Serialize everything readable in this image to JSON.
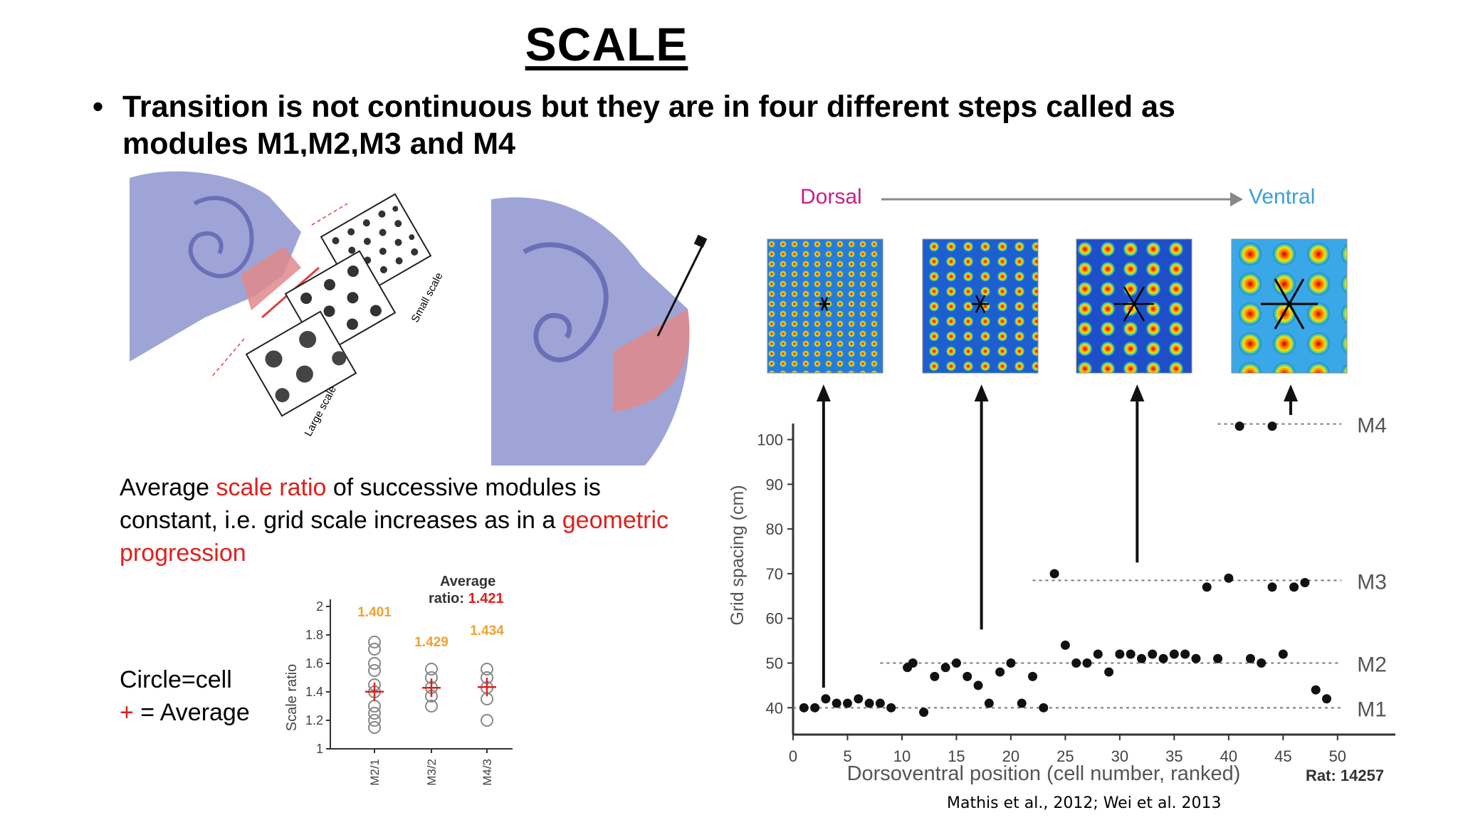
{
  "slide": {
    "title": "SCALE",
    "bullet_symbol": "•",
    "bullet": "Transition is not continuous but they are in four different steps called as modules M1,M2,M3 and M4",
    "avg_text": {
      "part1": "Average ",
      "highlight1": "scale ratio",
      "part2": " of successive modules is constant, i.e. grid scale increases as in a ",
      "highlight2": "geometric progression"
    },
    "legend": {
      "circle": "Circle=cell",
      "plus_symbol": "+",
      "plus_text": " = Average"
    },
    "citation": "Mathis et al., 2012; Wei et al. 2013"
  },
  "brain_left": {
    "small_scale": "Small scale",
    "large_scale": "Large scale"
  },
  "ratio_chart": {
    "ylabel": "Scale ratio",
    "yticks": [
      "2",
      "1.8",
      "1.6",
      "1.4",
      "1.2",
      "1"
    ],
    "categories": [
      "M2/1",
      "M3/2",
      "M4/3"
    ],
    "labels": [
      "1.401",
      "1.429",
      "1.434"
    ],
    "avg_label": "Average",
    "avg_ratio_prefix": "ratio: ",
    "avg_ratio_value": "1.421",
    "label_color": "#f0a030",
    "avg_color": "#e0201c"
  },
  "chart_data": {
    "type": "scatter",
    "xlabel": "Dorsoventral position (cell number, ranked)",
    "ylabel": "Grid spacing (cm)",
    "xticks": [
      "0",
      "5",
      "10",
      "15",
      "20",
      "25",
      "30",
      "35",
      "40",
      "45",
      "50"
    ],
    "yticks": [
      "40",
      "50",
      "60",
      "70",
      "80",
      "90",
      "100"
    ],
    "xlim": [
      0,
      54
    ],
    "ylim": [
      34,
      102
    ],
    "modules": [
      {
        "name": "M1",
        "level": 40
      },
      {
        "name": "M2",
        "level": 50
      },
      {
        "name": "M3",
        "level": 68.5
      },
      {
        "name": "M4",
        "level": 103.5
      }
    ],
    "dorsal": "Dorsal",
    "ventral": "Ventral",
    "dorsal_color": "#c8208a",
    "ventral_color": "#3aa0d8",
    "rat": "Rat: 14257",
    "points": [
      [
        1,
        40
      ],
      [
        2,
        40
      ],
      [
        3,
        42
      ],
      [
        4,
        41
      ],
      [
        5,
        41
      ],
      [
        6,
        42
      ],
      [
        7,
        41
      ],
      [
        8,
        41
      ],
      [
        9,
        40
      ],
      [
        12,
        39
      ],
      [
        10.5,
        49
      ],
      [
        11,
        50
      ],
      [
        13,
        47
      ],
      [
        14,
        49
      ],
      [
        15,
        50
      ],
      [
        16,
        47
      ],
      [
        17,
        45
      ],
      [
        18,
        41
      ],
      [
        19,
        48
      ],
      [
        20,
        50
      ],
      [
        21,
        41
      ],
      [
        22,
        47
      ],
      [
        23,
        40
      ],
      [
        24,
        70
      ],
      [
        25,
        54
      ],
      [
        26,
        50
      ],
      [
        27,
        50
      ],
      [
        28,
        52
      ],
      [
        29,
        48
      ],
      [
        30,
        52
      ],
      [
        31,
        52
      ],
      [
        32,
        51
      ],
      [
        33,
        52
      ],
      [
        34,
        51
      ],
      [
        35,
        52
      ],
      [
        36,
        52
      ],
      [
        37,
        51
      ],
      [
        38,
        67
      ],
      [
        39,
        51
      ],
      [
        40,
        69
      ],
      [
        42,
        51
      ],
      [
        43,
        50
      ],
      [
        44,
        67
      ],
      [
        45,
        52
      ],
      [
        46,
        67
      ],
      [
        47,
        68
      ],
      [
        48,
        44
      ],
      [
        49,
        42
      ],
      [
        41,
        103
      ],
      [
        44,
        103
      ]
    ]
  }
}
